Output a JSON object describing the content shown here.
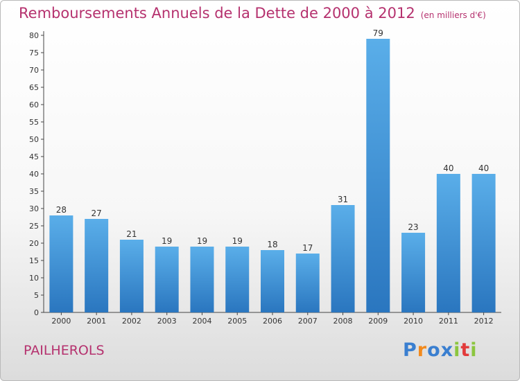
{
  "chart_data": {
    "type": "bar",
    "title": "Remboursements Annuels de la Dette de 2000 à 2012",
    "subtitle": "(en milliers d'€)",
    "xlabel": "",
    "ylabel": "",
    "categories": [
      "2000",
      "2001",
      "2002",
      "2003",
      "2004",
      "2005",
      "2006",
      "2007",
      "2008",
      "2009",
      "2010",
      "2011",
      "2012"
    ],
    "values": [
      28,
      27,
      21,
      19,
      19,
      19,
      18,
      17,
      31,
      79,
      23,
      40,
      40
    ],
    "ylim": [
      0,
      80
    ],
    "yticks": [
      0,
      5,
      10,
      15,
      20,
      25,
      30,
      35,
      40,
      45,
      50,
      55,
      60,
      65,
      70,
      75,
      80
    ],
    "grid": false,
    "legend": "none",
    "bar_color": "#3d8fd6"
  },
  "commune": "PAILHEROLS",
  "logo": {
    "letters": [
      "P",
      "r",
      "o",
      "x",
      "i",
      "t",
      "i"
    ],
    "colors": [
      "#3a7fd0",
      "#f28a1d",
      "#3a7fd0",
      "#3a7fd0",
      "#8cc63f",
      "#e23b3b",
      "#8cc63f"
    ]
  }
}
